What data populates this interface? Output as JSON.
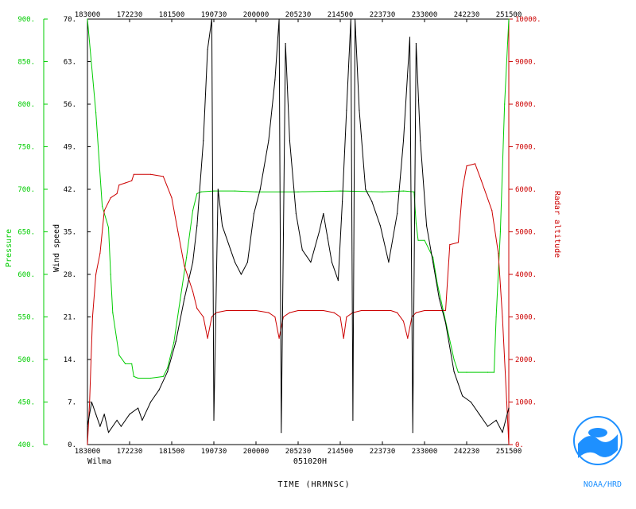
{
  "chart_data": {
    "type": "line",
    "storm": "Wilma",
    "date_label": "051020H",
    "xlabel": "TIME (HRMNSC)",
    "x_ticks": [
      "183000",
      "172230",
      "181500",
      "190730",
      "200000",
      "205230",
      "214500",
      "223730",
      "233000",
      "242230",
      "251500"
    ],
    "y_wind": {
      "label": "Wind speed",
      "ticks": [
        "0.",
        "7.",
        "14.",
        "21.",
        "28.",
        "35.",
        "42.",
        "49.",
        "56.",
        "63.",
        "70."
      ],
      "range": [
        0,
        70
      ]
    },
    "y_pressure": {
      "label": "Pressure",
      "ticks": [
        "400.",
        "450.",
        "500.",
        "550.",
        "600.",
        "650.",
        "700.",
        "750.",
        "800.",
        "850.",
        "900."
      ],
      "range": [
        400,
        900
      ]
    },
    "y_altitude": {
      "label": "Radar altitude",
      "ticks": [
        "0.",
        "1000.",
        "2000.",
        "3000.",
        "4000.",
        "5000.",
        "6000.",
        "7000.",
        "8000.",
        "9000.",
        "10000."
      ],
      "range": [
        0,
        10000
      ]
    },
    "x_range": [
      0,
      10
    ],
    "series": [
      {
        "name": "Pressure",
        "color": "#00cc00",
        "axis": "pressure",
        "points": [
          [
            0,
            900
          ],
          [
            0.2,
            790
          ],
          [
            0.35,
            680
          ],
          [
            0.5,
            655
          ],
          [
            0.55,
            600
          ],
          [
            0.6,
            555
          ],
          [
            0.75,
            505
          ],
          [
            0.9,
            495
          ],
          [
            1.05,
            495
          ],
          [
            1.1,
            480
          ],
          [
            1.2,
            478
          ],
          [
            1.5,
            478
          ],
          [
            1.8,
            480
          ],
          [
            1.9,
            490
          ],
          [
            2.05,
            520
          ],
          [
            2.2,
            570
          ],
          [
            2.35,
            620
          ],
          [
            2.5,
            675
          ],
          [
            2.6,
            695
          ],
          [
            2.7,
            697
          ],
          [
            3.0,
            698
          ],
          [
            3.5,
            698
          ],
          [
            4.0,
            697
          ],
          [
            5.0,
            697
          ],
          [
            6.0,
            698
          ],
          [
            7.0,
            697
          ],
          [
            7.5,
            698
          ],
          [
            7.75,
            697
          ],
          [
            7.8,
            660
          ],
          [
            7.85,
            640
          ],
          [
            8.0,
            640
          ],
          [
            8.2,
            620
          ],
          [
            8.3,
            590
          ],
          [
            8.5,
            545
          ],
          [
            8.7,
            500
          ],
          [
            8.8,
            485
          ],
          [
            9.0,
            485
          ],
          [
            9.5,
            485
          ],
          [
            9.65,
            485
          ],
          [
            9.7,
            550
          ],
          [
            9.8,
            650
          ],
          [
            9.9,
            800
          ],
          [
            10,
            900
          ]
        ]
      },
      {
        "name": "Radar altitude",
        "color": "#cc0000",
        "axis": "altitude",
        "points": [
          [
            0,
            0
          ],
          [
            0.05,
            1000
          ],
          [
            0.12,
            3000
          ],
          [
            0.2,
            4000
          ],
          [
            0.3,
            4500
          ],
          [
            0.4,
            5500
          ],
          [
            0.55,
            5800
          ],
          [
            0.7,
            5900
          ],
          [
            0.75,
            6100
          ],
          [
            0.9,
            6150
          ],
          [
            1.05,
            6200
          ],
          [
            1.1,
            6350
          ],
          [
            1.5,
            6350
          ],
          [
            1.8,
            6300
          ],
          [
            2.0,
            5800
          ],
          [
            2.15,
            5000
          ],
          [
            2.3,
            4200
          ],
          [
            2.4,
            3900
          ],
          [
            2.5,
            3600
          ],
          [
            2.6,
            3200
          ],
          [
            2.75,
            3000
          ],
          [
            2.85,
            2500
          ],
          [
            2.95,
            3000
          ],
          [
            3.05,
            3100
          ],
          [
            3.3,
            3150
          ],
          [
            4.0,
            3150
          ],
          [
            4.3,
            3100
          ],
          [
            4.45,
            3000
          ],
          [
            4.55,
            2500
          ],
          [
            4.65,
            3000
          ],
          [
            4.8,
            3100
          ],
          [
            5.0,
            3150
          ],
          [
            5.6,
            3150
          ],
          [
            5.85,
            3100
          ],
          [
            6.0,
            3000
          ],
          [
            6.08,
            2500
          ],
          [
            6.15,
            3000
          ],
          [
            6.3,
            3100
          ],
          [
            6.5,
            3150
          ],
          [
            7.2,
            3150
          ],
          [
            7.35,
            3100
          ],
          [
            7.5,
            2900
          ],
          [
            7.6,
            2500
          ],
          [
            7.7,
            3000
          ],
          [
            7.8,
            3100
          ],
          [
            8.0,
            3150
          ],
          [
            8.5,
            3150
          ],
          [
            8.6,
            4700
          ],
          [
            8.8,
            4750
          ],
          [
            8.9,
            6000
          ],
          [
            9.0,
            6550
          ],
          [
            9.2,
            6600
          ],
          [
            9.35,
            6200
          ],
          [
            9.6,
            5500
          ],
          [
            9.75,
            4500
          ],
          [
            9.85,
            3000
          ],
          [
            9.95,
            1000
          ],
          [
            10,
            0
          ]
        ]
      },
      {
        "name": "Wind speed",
        "color": "#000000",
        "axis": "wind",
        "points": [
          [
            0,
            3
          ],
          [
            0.1,
            7
          ],
          [
            0.2,
            5
          ],
          [
            0.3,
            3
          ],
          [
            0.4,
            5
          ],
          [
            0.5,
            2
          ],
          [
            0.7,
            4
          ],
          [
            0.8,
            3
          ],
          [
            1.0,
            5
          ],
          [
            1.2,
            6
          ],
          [
            1.3,
            4
          ],
          [
            1.5,
            7
          ],
          [
            1.7,
            9
          ],
          [
            1.9,
            12
          ],
          [
            2.1,
            17
          ],
          [
            2.3,
            24
          ],
          [
            2.5,
            30
          ],
          [
            2.6,
            36
          ],
          [
            2.75,
            50
          ],
          [
            2.85,
            65
          ],
          [
            2.95,
            70
          ],
          [
            3.0,
            4
          ],
          [
            3.1,
            42
          ],
          [
            3.2,
            36
          ],
          [
            3.4,
            32
          ],
          [
            3.5,
            30
          ],
          [
            3.65,
            28
          ],
          [
            3.8,
            30
          ],
          [
            3.95,
            38
          ],
          [
            4.1,
            42
          ],
          [
            4.3,
            50
          ],
          [
            4.45,
            60
          ],
          [
            4.55,
            70
          ],
          [
            4.6,
            2
          ],
          [
            4.7,
            66
          ],
          [
            4.8,
            50
          ],
          [
            4.95,
            38
          ],
          [
            5.1,
            32
          ],
          [
            5.3,
            30
          ],
          [
            5.5,
            35
          ],
          [
            5.6,
            38
          ],
          [
            5.7,
            34
          ],
          [
            5.8,
            30
          ],
          [
            5.95,
            27
          ],
          [
            6.05,
            40
          ],
          [
            6.15,
            55
          ],
          [
            6.25,
            70
          ],
          [
            6.3,
            4
          ],
          [
            6.35,
            70
          ],
          [
            6.45,
            55
          ],
          [
            6.6,
            42
          ],
          [
            6.75,
            40
          ],
          [
            6.95,
            36
          ],
          [
            7.15,
            30
          ],
          [
            7.35,
            38
          ],
          [
            7.5,
            50
          ],
          [
            7.65,
            67
          ],
          [
            7.72,
            2
          ],
          [
            7.8,
            66
          ],
          [
            7.9,
            50
          ],
          [
            8.05,
            36
          ],
          [
            8.2,
            30
          ],
          [
            8.35,
            24
          ],
          [
            8.5,
            20
          ],
          [
            8.7,
            12
          ],
          [
            8.9,
            8
          ],
          [
            9.1,
            7
          ],
          [
            9.3,
            5
          ],
          [
            9.5,
            3
          ],
          [
            9.7,
            4
          ],
          [
            9.85,
            2
          ],
          [
            10,
            6
          ]
        ]
      }
    ],
    "logo_text": "NOAA/HRD"
  },
  "colors": {
    "pressure": "#00cc00",
    "altitude": "#cc0000",
    "wind": "#000000",
    "axis": "#000000"
  }
}
